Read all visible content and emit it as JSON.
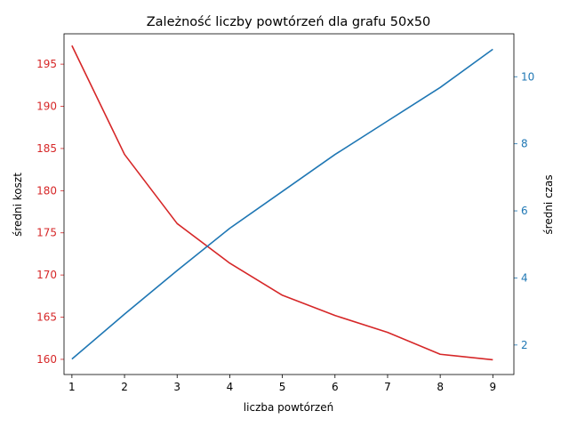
{
  "chart_data": {
    "type": "line",
    "title": "Zależność liczby powtórzeń dla grafu 50x50",
    "xlabel": "liczba powtórzeń",
    "ylabel_left": "średni koszt",
    "ylabel_right": "średni czas",
    "x": [
      1,
      2,
      3,
      4,
      5,
      6,
      7,
      8,
      9
    ],
    "xlim": [
      0.85,
      9.4
    ],
    "x_ticks": [
      "1",
      "2",
      "3",
      "4",
      "5",
      "6",
      "7",
      "8",
      "9"
    ],
    "series": [
      {
        "axis": "left",
        "color": "#d62728",
        "values": [
          197.2,
          184.3,
          176.1,
          171.4,
          167.6,
          165.2,
          163.2,
          160.6,
          159.95
        ]
      },
      {
        "axis": "right",
        "color": "#1f77b4",
        "values": [
          1.58,
          2.92,
          4.22,
          5.48,
          6.58,
          7.68,
          8.68,
          9.68,
          10.82
        ]
      }
    ],
    "ylim_left": [
      158.2,
      198.6
    ],
    "y_ticks_left": [
      "160",
      "165",
      "170",
      "175",
      "180",
      "185",
      "190",
      "195"
    ],
    "ylim_right": [
      1.12,
      11.28
    ],
    "y_ticks_right": [
      "2",
      "4",
      "6",
      "8",
      "10"
    ],
    "left_axis_color": "#d62728",
    "right_axis_color": "#1f77b4",
    "grid": false,
    "legend": "none"
  }
}
